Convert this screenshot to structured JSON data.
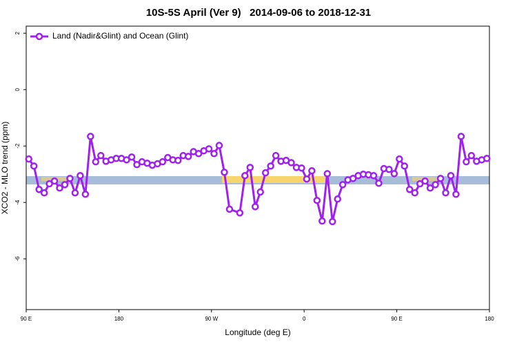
{
  "chart_data": {
    "type": "line",
    "title": "10S-5S April (Ver 9)   2014-09-06 to 2018-12-31",
    "x_label": "Longitude (deg E)",
    "y_label": "XCO2 - MLO trend (ppm)",
    "xlim": [
      90,
      540
    ],
    "ylim": [
      -7.8,
      2.25
    ],
    "xticks": [
      {
        "value": 90,
        "label": "90 E"
      },
      180,
      {
        "value": 270,
        "label": "90 W"
      },
      {
        "value": 360,
        "label": "0"
      },
      {
        "value": 450,
        "label": "90 E"
      },
      {
        "value": 540,
        "label": "180"
      }
    ],
    "yticks": [
      2,
      0,
      -2,
      -4,
      -6
    ],
    "legend": "top-left",
    "x": [
      92.5,
      97.5,
      102.5,
      107.5,
      112.5,
      117.5,
      122.5,
      127.5,
      132.5,
      137.5,
      142.5,
      147.5,
      152.5,
      157.5,
      162.5,
      167.5,
      172.5,
      177.5,
      182.5,
      187.5,
      192.5,
      197.5,
      202.5,
      207.5,
      212.5,
      217.5,
      222.5,
      227.5,
      232.5,
      237.5,
      242.5,
      247.5,
      252.5,
      257.5,
      262.5,
      267.5,
      272.5,
      277.5,
      282.5,
      287.5,
      297.5,
      302.5,
      307.5,
      312.5,
      317.5,
      322.5,
      327.5,
      332.5,
      337.5,
      342.5,
      347.5,
      352.5,
      357.5,
      362.5,
      367.5,
      372.5,
      377.5,
      382.5,
      387.5,
      392.5,
      397.5,
      402.5,
      407.5,
      412.5,
      417.5,
      422.5,
      427.5,
      432.5,
      437.5,
      442.5,
      447.5,
      452.5,
      457.5,
      462.5,
      467.5,
      472.5,
      477.5,
      482.5,
      487.5,
      492.5,
      497.5,
      502.5,
      507.5,
      512.5,
      517.5,
      522.5,
      527.5,
      532.5,
      537.5
    ],
    "series": [
      {
        "name": "Land (Nadir&Glint) and Ocean (Glint)",
        "color": "#a020f0",
        "values": [
          -2.46,
          -2.71,
          -3.54,
          -3.66,
          -3.34,
          -3.24,
          -3.49,
          -3.37,
          -3.15,
          -3.66,
          -3.05,
          -3.71,
          -1.66,
          -2.56,
          -2.34,
          -2.54,
          -2.49,
          -2.44,
          -2.44,
          -2.49,
          -2.39,
          -2.66,
          -2.56,
          -2.61,
          -2.68,
          -2.63,
          -2.56,
          -2.41,
          -2.49,
          -2.51,
          -2.34,
          -2.37,
          -2.2,
          -2.27,
          -2.17,
          -2.1,
          -2.27,
          -1.98,
          -2.93,
          -4.24,
          -4.37,
          -3.05,
          -2.76,
          -4.15,
          -3.63,
          -2.95,
          -2.71,
          -2.34,
          -2.54,
          -2.51,
          -2.59,
          -2.76,
          -2.78,
          -3.17,
          -2.88,
          -3.93,
          -4.66,
          -2.98,
          -4.68,
          -3.88,
          -3.37,
          -3.2,
          -3.15,
          -3.05,
          -3.0,
          -3.02,
          -3.05,
          -3.32,
          -2.8,
          -2.83,
          -2.98,
          -2.46,
          -2.71,
          -3.54,
          -3.66,
          -3.34,
          -3.24,
          -3.49,
          -3.37,
          -3.15,
          -3.66,
          -3.05,
          -3.71,
          -1.66,
          -2.56,
          -2.34,
          -2.54,
          -2.49,
          -2.44
        ]
      }
    ]
  }
}
